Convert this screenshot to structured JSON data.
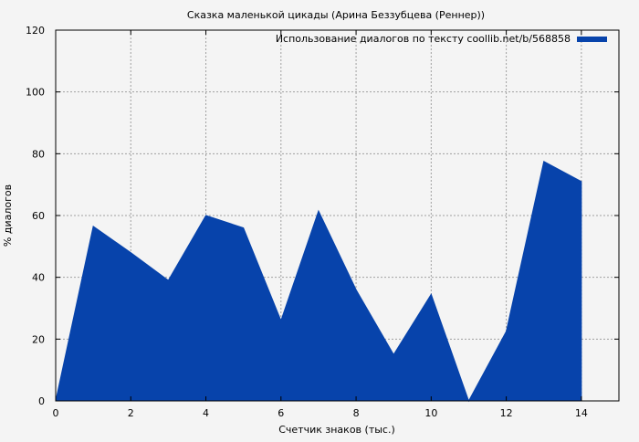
{
  "colors": {
    "background": "#f4f4f4",
    "series": "#0743ab",
    "grid": "#a0a0a0",
    "axis": "#000000"
  },
  "chart_data": {
    "type": "area",
    "title": "Сказка маленькой цикады (Арина Беззубцева (Реннер))",
    "xlabel": "Счетчик знаков (тыс.)",
    "ylabel": "% диалогов",
    "xlim": [
      0,
      15
    ],
    "ylim": [
      0,
      120
    ],
    "xticks": [
      0,
      2,
      4,
      6,
      8,
      10,
      12,
      14
    ],
    "yticks": [
      0,
      20,
      40,
      60,
      80,
      100,
      120
    ],
    "grid": true,
    "legend_position": "top-right",
    "series": [
      {
        "name": "Использование диалогов по тексту coollib.net/b/568858",
        "color": "#0743ab",
        "x": [
          0,
          1,
          2,
          3,
          4,
          5,
          6,
          7,
          8,
          9,
          10,
          11,
          12,
          13,
          14
        ],
        "y": [
          0,
          56.5,
          48,
          39,
          60,
          56,
          26,
          61.5,
          36,
          15,
          34.5,
          0,
          22.5,
          77.5,
          71
        ]
      }
    ]
  }
}
